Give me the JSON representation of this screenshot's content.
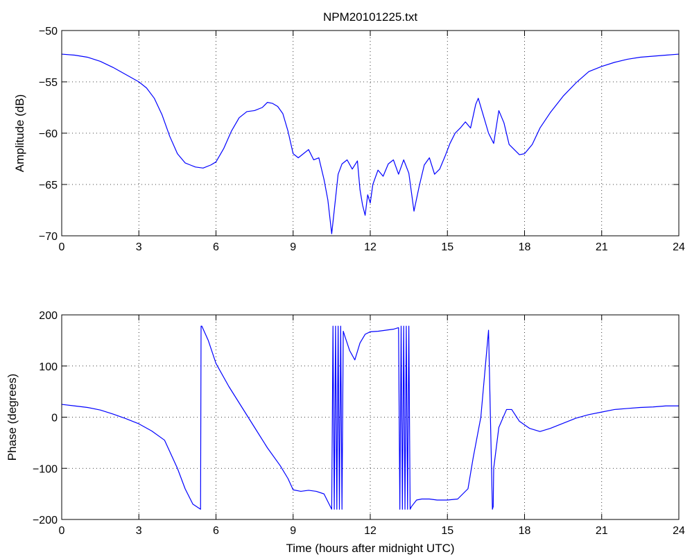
{
  "figure": {
    "title": "NPM20101225.txt"
  },
  "chart_data": [
    {
      "type": "line",
      "title": "NPM20101225.txt",
      "xlabel": "",
      "ylabel": "Amplitude (dB)",
      "xlim": [
        0,
        24
      ],
      "ylim": [
        -70,
        -50
      ],
      "xticks": [
        0,
        3,
        6,
        9,
        12,
        15,
        18,
        21,
        24
      ],
      "yticks": [
        -70,
        -65,
        -60,
        -55,
        -50
      ],
      "grid": true,
      "color": "#0000ff",
      "series": [
        {
          "x": [
            0,
            0.5,
            1,
            1.5,
            2,
            2.5,
            3,
            3.3,
            3.6,
            3.9,
            4.2,
            4.5,
            4.8,
            5.0,
            5.2,
            5.5,
            5.8,
            6.0,
            6.3,
            6.6,
            6.9,
            7.2,
            7.5,
            7.8,
            8.0,
            8.2,
            8.4,
            8.6,
            8.8,
            9.0,
            9.2,
            9.4,
            9.6,
            9.8,
            10.0,
            10.2,
            10.35,
            10.5,
            10.6,
            10.75,
            10.9,
            11.1,
            11.3,
            11.5,
            11.6,
            11.7,
            11.8,
            11.9,
            12.0,
            12.1,
            12.3,
            12.5,
            12.7,
            12.9,
            13.1,
            13.3,
            13.5,
            13.7,
            13.9,
            14.1,
            14.3,
            14.5,
            14.7,
            14.9,
            15.1,
            15.3,
            15.5,
            15.7,
            15.9,
            16.1,
            16.2,
            16.4,
            16.6,
            16.8,
            17.0,
            17.2,
            17.4,
            17.6,
            17.8,
            18.0,
            18.3,
            18.6,
            19.0,
            19.5,
            20.0,
            20.5,
            21.0,
            21.5,
            22.0,
            22.5,
            23.0,
            23.5,
            24.0
          ],
          "y": [
            -52.3,
            -52.4,
            -52.6,
            -53.0,
            -53.6,
            -54.3,
            -55.0,
            -55.6,
            -56.6,
            -58.2,
            -60.3,
            -62.0,
            -62.9,
            -63.1,
            -63.3,
            -63.4,
            -63.1,
            -62.8,
            -61.5,
            -59.8,
            -58.5,
            -57.9,
            -57.8,
            -57.5,
            -57.0,
            -57.1,
            -57.4,
            -58.1,
            -59.8,
            -62.0,
            -62.4,
            -62.0,
            -61.6,
            -62.6,
            -62.4,
            -64.5,
            -66.5,
            -69.8,
            -67.5,
            -64.0,
            -63.0,
            -62.6,
            -63.5,
            -62.7,
            -65.5,
            -67.0,
            -68.0,
            -66.0,
            -66.8,
            -65.0,
            -63.6,
            -64.2,
            -63.0,
            -62.6,
            -64.0,
            -62.6,
            -63.9,
            -67.6,
            -65.2,
            -63.1,
            -62.4,
            -64.0,
            -63.5,
            -62.3,
            -61.0,
            -60.0,
            -59.5,
            -58.9,
            -59.5,
            -57.2,
            -56.6,
            -58.3,
            -60.0,
            -61.0,
            -57.8,
            -59.0,
            -61.1,
            -61.6,
            -62.1,
            -62.0,
            -61.1,
            -59.5,
            -58.0,
            -56.4,
            -55.1,
            -54.0,
            -53.5,
            -53.1,
            -52.8,
            -52.6,
            -52.5,
            -52.4,
            -52.3
          ]
        }
      ]
    },
    {
      "type": "line",
      "title": "",
      "xlabel": "Time (hours after midnight UTC)",
      "ylabel": "Phase (degrees)",
      "xlim": [
        0,
        24
      ],
      "ylim": [
        -200,
        200
      ],
      "xticks": [
        0,
        3,
        6,
        9,
        12,
        15,
        18,
        21,
        24
      ],
      "yticks": [
        -200,
        -100,
        0,
        100,
        200
      ],
      "grid": true,
      "color": "#0000ff",
      "series": [
        {
          "x": [
            0,
            0.5,
            1,
            1.5,
            2,
            2.5,
            3,
            3.5,
            4.0,
            4.5,
            4.8,
            5.1,
            5.4,
            5.42,
            5.45,
            5.7,
            6.0,
            6.5,
            7.0,
            7.5,
            8.0,
            8.5,
            8.8,
            9.0,
            9.3,
            9.6,
            9.9,
            10.2,
            10.5,
            10.55,
            10.6,
            10.65,
            10.7,
            10.75,
            10.8,
            10.85,
            10.9,
            10.95,
            11.0,
            11.2,
            11.4,
            11.6,
            11.8,
            12.0,
            12.3,
            12.6,
            12.9,
            13.1,
            13.15,
            13.2,
            13.25,
            13.3,
            13.35,
            13.4,
            13.45,
            13.5,
            13.55,
            13.6,
            13.8,
            14.0,
            14.3,
            14.6,
            15.0,
            15.4,
            15.8,
            16.0,
            16.3,
            16.6,
            16.75,
            16.78,
            16.8,
            17.0,
            17.3,
            17.5,
            17.8,
            18.2,
            18.6,
            19.0,
            19.5,
            20.0,
            20.5,
            21.0,
            21.5,
            22.0,
            22.5,
            23.0,
            23.5,
            24.0
          ],
          "y": [
            25,
            22,
            19,
            14,
            6,
            -3,
            -13,
            -27,
            -45,
            -100,
            -140,
            -170,
            -180,
            178,
            178,
            150,
            105,
            60,
            20,
            -20,
            -60,
            -95,
            -120,
            -142,
            -145,
            -143,
            -145,
            -150,
            -180,
            178,
            -180,
            178,
            -180,
            178,
            -180,
            178,
            -180,
            168,
            160,
            130,
            112,
            145,
            162,
            167,
            168,
            170,
            172,
            175,
            -180,
            178,
            -180,
            178,
            -180,
            178,
            -180,
            178,
            -180,
            -175,
            -162,
            -160,
            -160,
            -162,
            -162,
            -160,
            -140,
            -80,
            0,
            170,
            -180,
            -175,
            -100,
            -20,
            15,
            15,
            -8,
            -22,
            -28,
            -22,
            -12,
            -2,
            5,
            10,
            15,
            17,
            19,
            20,
            22,
            22
          ]
        }
      ]
    }
  ]
}
